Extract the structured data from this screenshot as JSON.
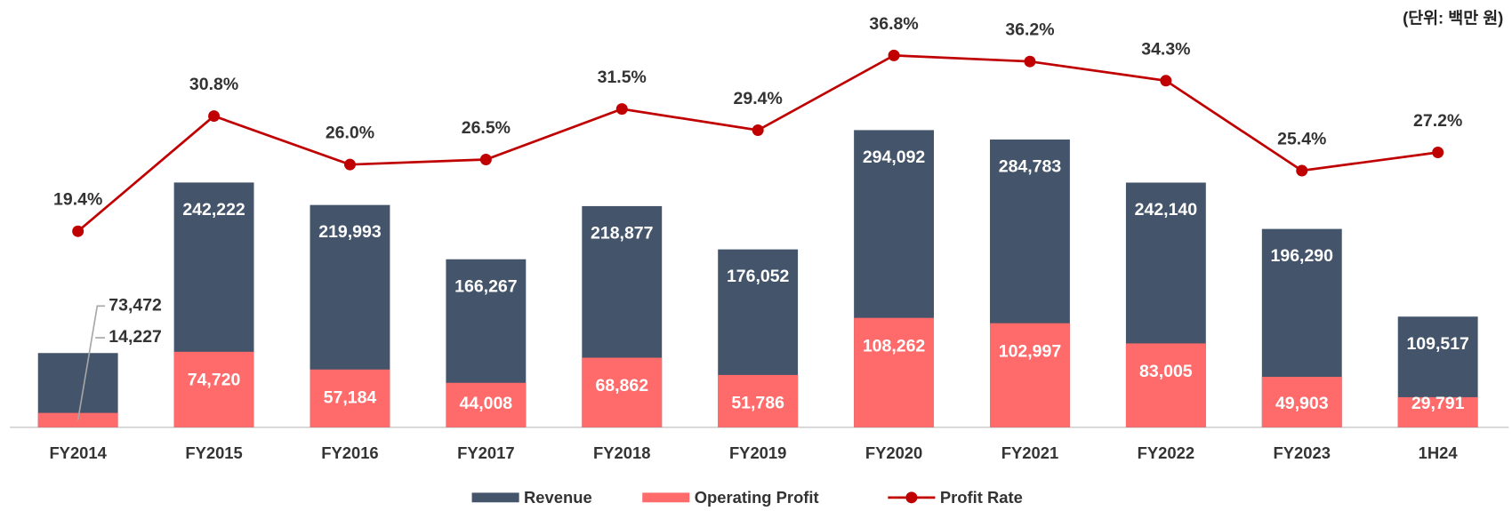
{
  "chart_data": {
    "type": "bar",
    "annotation": "(단위: 백만 원)",
    "categories": [
      "FY2014",
      "FY2015",
      "FY2016",
      "FY2017",
      "FY2018",
      "FY2019",
      "FY2020",
      "FY2021",
      "FY2022",
      "FY2023",
      "1H24"
    ],
    "series": [
      {
        "name": "Revenue",
        "color": "#44546a",
        "type": "bar",
        "values": [
          73472,
          242222,
          219993,
          166267,
          218877,
          176052,
          294092,
          284783,
          242140,
          196290,
          109517
        ],
        "value_labels": [
          "73,472",
          "242,222",
          "219,993",
          "166,267",
          "218,877",
          "176,052",
          "294,092",
          "284,783",
          "242,140",
          "196,290",
          "109,517"
        ]
      },
      {
        "name": "Operating Profit",
        "color": "#ff6b6b",
        "type": "bar",
        "values": [
          14227,
          74720,
          57184,
          44008,
          68862,
          51786,
          108262,
          102997,
          83005,
          49903,
          29791
        ],
        "value_labels": [
          "14,227",
          "74,720",
          "57,184",
          "44,008",
          "68,862",
          "51,786",
          "108,262",
          "102,997",
          "83,005",
          "49,903",
          "29,791"
        ]
      },
      {
        "name": "Profit Rate",
        "color": "#c00000",
        "type": "line",
        "axis": "y2",
        "values": [
          19.4,
          30.8,
          26.0,
          26.5,
          31.5,
          29.4,
          36.8,
          36.2,
          34.3,
          25.4,
          27.2
        ],
        "value_labels": [
          "19.4%",
          "30.8%",
          "26.0%",
          "26.5%",
          "31.5%",
          "29.4%",
          "36.8%",
          "36.2%",
          "34.3%",
          "25.4%",
          "27.2%"
        ]
      }
    ],
    "ylim": [
      0,
      400000
    ],
    "y2lim": [
      0,
      40
    ],
    "legend": "bottom"
  }
}
